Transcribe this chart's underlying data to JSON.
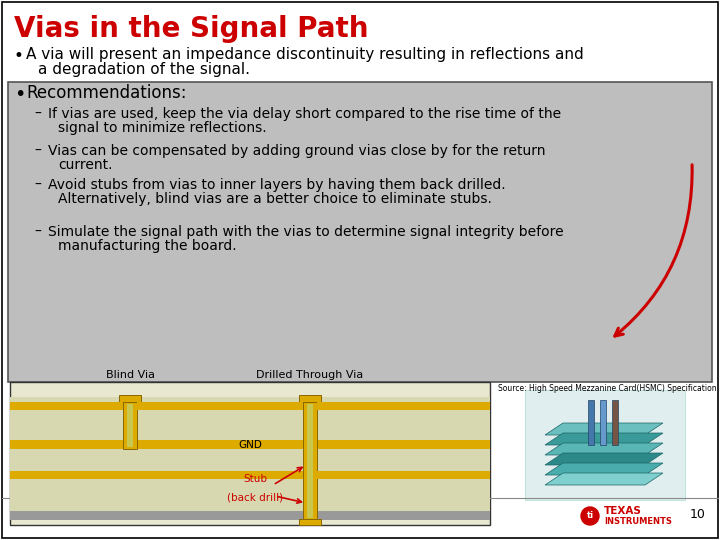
{
  "title": "Vias in the Signal Path",
  "title_color": "#CC0000",
  "title_fontsize": 20,
  "bullet1_line1": "A via will present an impedance discontinuity resulting in reflections and",
  "bullet1_line2": "a degradation of the signal.",
  "bullet1_fontsize": 11,
  "rec_header": "Recommendations:",
  "rec_header_fontsize": 12,
  "rec_items": [
    [
      "If vias are used, keep the via delay short compared to the rise time of the",
      "signal to minimize reflections."
    ],
    [
      "Vias can be compensated by adding ground vias close by for the return",
      "current."
    ],
    [
      "Avoid stubs from vias to inner layers by having them back drilled.",
      "Alternatively, blind vias are a better choice to eliminate stubs."
    ],
    [
      "Simulate the signal path with the vias to determine signal integrity before",
      "manufacturing the board."
    ]
  ],
  "rec_fontsize": 10,
  "rec_box_color": "#BEBEBE",
  "rec_box_edge": "#555555",
  "background_color": "#FFFFFF",
  "slide_border_color": "#000000",
  "page_number": "10",
  "source_text": "Source: High Speed Mezzanine Card(HSMC) Specification  (Altera)",
  "blind_via_label": "Blind Via",
  "drilled_via_label": "Drilled Through Via",
  "stub_label_line1": "Stub",
  "stub_label_line2": "(back drill)",
  "gnd_label": "GND",
  "arrow_color": "#CC0000",
  "gold_color": "#DDAA00",
  "pcb_bg_color": "#D8D8B0",
  "pcb_gray_color": "#999999",
  "diag_border_color": "#333333",
  "diag_bg": "#E8E8D0"
}
